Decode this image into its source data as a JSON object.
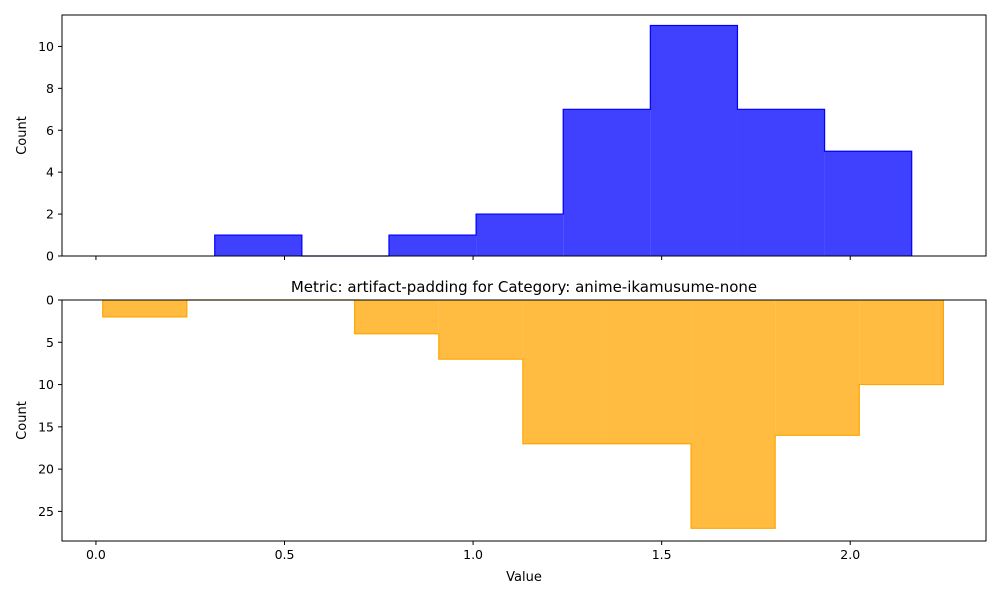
{
  "chart_data": [
    {
      "type": "bar",
      "subtype": "step-histogram",
      "title": "",
      "xlabel": "",
      "ylabel": "Count",
      "xlim": [
        -0.09,
        2.36
      ],
      "ylim": [
        0,
        11.5
      ],
      "y_inverted": false,
      "show_x_tick_labels": false,
      "xticks": [
        0.0,
        0.5,
        1.0,
        1.5,
        2.0
      ],
      "yticks": [
        0,
        2,
        4,
        6,
        8,
        10
      ],
      "ytick_labels": [
        "0",
        "2",
        "4",
        "6",
        "8",
        "10"
      ],
      "bin_edges": [
        0.315,
        0.546,
        0.777,
        1.008,
        1.239,
        1.47,
        1.701,
        1.932,
        2.163
      ],
      "counts": [
        1,
        0,
        1,
        2,
        7,
        11,
        7,
        5
      ],
      "color": "#0000ff",
      "fill_opacity": 0.75
    },
    {
      "type": "bar",
      "subtype": "step-histogram",
      "title": "Metric: artifact-padding for Category: anime-ikamusume-none",
      "xlabel": "Value",
      "ylabel": "Count",
      "xlim": [
        -0.09,
        2.36
      ],
      "ylim": [
        0,
        28.5
      ],
      "y_inverted": true,
      "show_x_tick_labels": true,
      "xticks": [
        0.0,
        0.5,
        1.0,
        1.5,
        2.0
      ],
      "xtick_labels": [
        "0.0",
        "0.5",
        "1.0",
        "1.5",
        "2.0"
      ],
      "yticks": [
        0,
        5,
        10,
        15,
        20,
        25
      ],
      "ytick_labels": [
        "0",
        "5",
        "10",
        "15",
        "20",
        "25"
      ],
      "bin_edges": [
        0.018,
        0.241,
        0.464,
        0.686,
        0.909,
        1.132,
        1.355,
        1.578,
        1.801,
        2.024,
        2.247
      ],
      "counts": [
        2,
        0,
        0,
        4,
        7,
        17,
        17,
        27,
        16,
        10
      ],
      "color": "#ffa500",
      "fill_opacity": 0.75
    }
  ]
}
